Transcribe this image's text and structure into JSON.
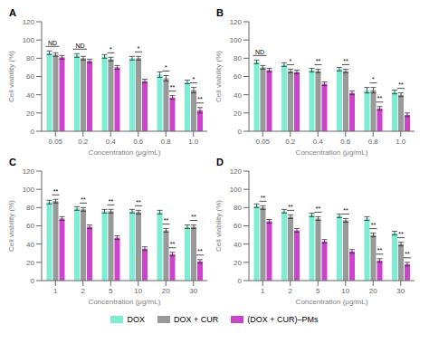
{
  "chart_data": [
    {
      "type": "bar",
      "title": "A",
      "xlabel": "Concentration (μg/mL)",
      "ylabel": "Cell viability (%)",
      "categories": [
        "0.05",
        "0.2",
        "0.4",
        "0.6",
        "0.8",
        "1.0"
      ],
      "series": [
        {
          "name": "DOX",
          "color": "#7DEDD4",
          "values": [
            86,
            83,
            82,
            80,
            62,
            54
          ],
          "errors": [
            2,
            2,
            2,
            2,
            3,
            2
          ]
        },
        {
          "name": "DOX + CUR",
          "color": "#999999",
          "values": [
            84,
            80,
            79,
            80,
            58,
            45
          ],
          "errors": [
            2,
            2,
            2,
            2,
            3,
            3
          ]
        },
        {
          "name": "(DOX + CUR)–PMs",
          "color": "#CC44CC",
          "values": [
            81,
            77,
            70,
            55,
            37,
            23
          ],
          "errors": [
            2,
            2,
            2,
            2,
            2,
            3
          ]
        }
      ],
      "annotations": [
        {
          "text": "ND",
          "category": "0.05",
          "series": [
            "DOX",
            "DOX + CUR"
          ]
        },
        {
          "text": "ND",
          "category": "0.2",
          "series": [
            "DOX",
            "DOX + CUR"
          ]
        },
        {
          "text": "*",
          "category": "0.4",
          "series": [
            "DOX + CUR"
          ]
        },
        {
          "text": "*",
          "category": "0.6",
          "series": [
            "DOX + CUR"
          ]
        },
        {
          "text": "*",
          "category": "0.8",
          "series": [
            "DOX + CUR"
          ]
        },
        {
          "text": "*",
          "category": "1.0",
          "series": [
            "DOX + CUR"
          ]
        },
        {
          "text": "**",
          "category": "0.8",
          "series": [
            "(DOX + CUR)–PMs"
          ]
        },
        {
          "text": "**",
          "category": "1.0",
          "series": [
            "(DOX + CUR)–PMs"
          ]
        }
      ],
      "ylim": [
        0,
        120
      ],
      "yticks": [
        0,
        20,
        40,
        60,
        80,
        100,
        120
      ],
      "grid": false,
      "legend": "bottom"
    },
    {
      "type": "bar",
      "title": "B",
      "xlabel": "Concentration (μg/mL)",
      "ylabel": "Cell viability (%)",
      "categories": [
        "0.05",
        "0.2",
        "0.4",
        "0.6",
        "0.8",
        "1.0"
      ],
      "series": [
        {
          "name": "DOX",
          "color": "#7DEDD4",
          "values": [
            76,
            73,
            67,
            68,
            45,
            43
          ],
          "errors": [
            2,
            2,
            2,
            2,
            3,
            2
          ]
        },
        {
          "name": "DOX + CUR",
          "color": "#999999",
          "values": [
            70,
            66,
            66,
            66,
            45,
            40
          ],
          "errors": [
            2,
            2,
            2,
            2,
            3,
            2
          ]
        },
        {
          "name": "(DOX + CUR)–PMs",
          "color": "#CC44CC",
          "values": [
            67,
            65,
            52,
            42,
            25,
            18
          ],
          "errors": [
            2,
            2,
            2,
            2,
            2,
            2
          ]
        }
      ],
      "annotations": [
        {
          "text": "ND",
          "category": "0.05",
          "series": [
            "DOX",
            "DOX + CUR"
          ]
        },
        {
          "text": "*",
          "category": "0.2",
          "series": [
            "DOX + CUR"
          ]
        },
        {
          "text": "**",
          "category": "0.4",
          "series": [
            "DOX + CUR"
          ]
        },
        {
          "text": "**",
          "category": "0.6",
          "series": [
            "DOX + CUR"
          ]
        },
        {
          "text": "*",
          "category": "0.8",
          "series": [
            "DOX + CUR"
          ]
        },
        {
          "text": "**",
          "category": "1.0",
          "series": [
            "DOX + CUR"
          ]
        },
        {
          "text": "**",
          "category": "0.8",
          "series": [
            "(DOX + CUR)–PMs"
          ]
        }
      ],
      "ylim": [
        0,
        120
      ],
      "yticks": [
        0,
        20,
        40,
        60,
        80,
        100,
        120
      ],
      "grid": false,
      "legend": "bottom"
    },
    {
      "type": "bar",
      "title": "C",
      "xlabel": "Concentration (μg/mL)",
      "ylabel": "Cell viability (%)",
      "categories": [
        "1",
        "2",
        "5",
        "10",
        "20",
        "30"
      ],
      "series": [
        {
          "name": "DOX",
          "color": "#7DEDD4",
          "values": [
            86,
            79,
            76,
            76,
            75,
            59
          ],
          "errors": [
            2,
            2,
            2,
            2,
            2,
            2
          ]
        },
        {
          "name": "DOX + CUR",
          "color": "#999999",
          "values": [
            87,
            78,
            76,
            75,
            55,
            59
          ],
          "errors": [
            2,
            2,
            2,
            2,
            2,
            2
          ]
        },
        {
          "name": "(DOX + CUR)–PMs",
          "color": "#CC44CC",
          "values": [
            68,
            59,
            47,
            35,
            29,
            21
          ],
          "errors": [
            2,
            2,
            2,
            2,
            2,
            2
          ]
        }
      ],
      "annotations": [
        {
          "text": "**",
          "category": "1",
          "series": [
            "DOX + CUR"
          ]
        },
        {
          "text": "**",
          "category": "2",
          "series": [
            "DOX + CUR"
          ]
        },
        {
          "text": "**",
          "category": "5",
          "series": [
            "DOX + CUR"
          ]
        },
        {
          "text": "**",
          "category": "10",
          "series": [
            "DOX + CUR"
          ]
        },
        {
          "text": "**",
          "category": "20",
          "series": [
            "DOX + CUR"
          ]
        },
        {
          "text": "**",
          "category": "30",
          "series": [
            "DOX + CUR"
          ]
        },
        {
          "text": "**",
          "category": "20",
          "series": [
            "(DOX + CUR)–PMs"
          ]
        },
        {
          "text": "**",
          "category": "30",
          "series": [
            "(DOX + CUR)–PMs"
          ]
        }
      ],
      "ylim": [
        0,
        120
      ],
      "yticks": [
        0,
        20,
        40,
        60,
        80,
        100,
        120
      ],
      "grid": false,
      "legend": "bottom"
    },
    {
      "type": "bar",
      "title": "D",
      "xlabel": "Concentration (μg/mL)",
      "ylabel": "Cell viability (%)",
      "categories": [
        "1",
        "2",
        "5",
        "10",
        "20",
        "30"
      ],
      "series": [
        {
          "name": "DOX",
          "color": "#7DEDD4",
          "values": [
            82,
            76,
            72,
            71,
            68,
            52
          ],
          "errors": [
            2,
            2,
            2,
            2,
            2,
            2
          ]
        },
        {
          "name": "DOX + CUR",
          "color": "#999999",
          "values": [
            80,
            70,
            68,
            66,
            50,
            40
          ],
          "errors": [
            2,
            2,
            2,
            2,
            2,
            2
          ]
        },
        {
          "name": "(DOX + CUR)–PMs",
          "color": "#CC44CC",
          "values": [
            65,
            55,
            43,
            32,
            22,
            18
          ],
          "errors": [
            2,
            2,
            2,
            2,
            2,
            2
          ]
        }
      ],
      "annotations": [
        {
          "text": "**",
          "category": "1",
          "series": [
            "DOX + CUR"
          ]
        },
        {
          "text": "**",
          "category": "2",
          "series": [
            "DOX + CUR"
          ]
        },
        {
          "text": "**",
          "category": "5",
          "series": [
            "DOX + CUR"
          ]
        },
        {
          "text": "**",
          "category": "10",
          "series": [
            "DOX + CUR"
          ]
        },
        {
          "text": "**",
          "category": "20",
          "series": [
            "DOX + CUR"
          ]
        },
        {
          "text": "**",
          "category": "30",
          "series": [
            "DOX + CUR"
          ]
        },
        {
          "text": "**",
          "category": "20",
          "series": [
            "(DOX + CUR)–PMs"
          ]
        },
        {
          "text": "**",
          "category": "30",
          "series": [
            "(DOX + CUR)–PMs"
          ]
        }
      ],
      "ylim": [
        0,
        120
      ],
      "yticks": [
        0,
        20,
        40,
        60,
        80,
        100,
        120
      ],
      "grid": false,
      "legend": "bottom"
    }
  ]
}
